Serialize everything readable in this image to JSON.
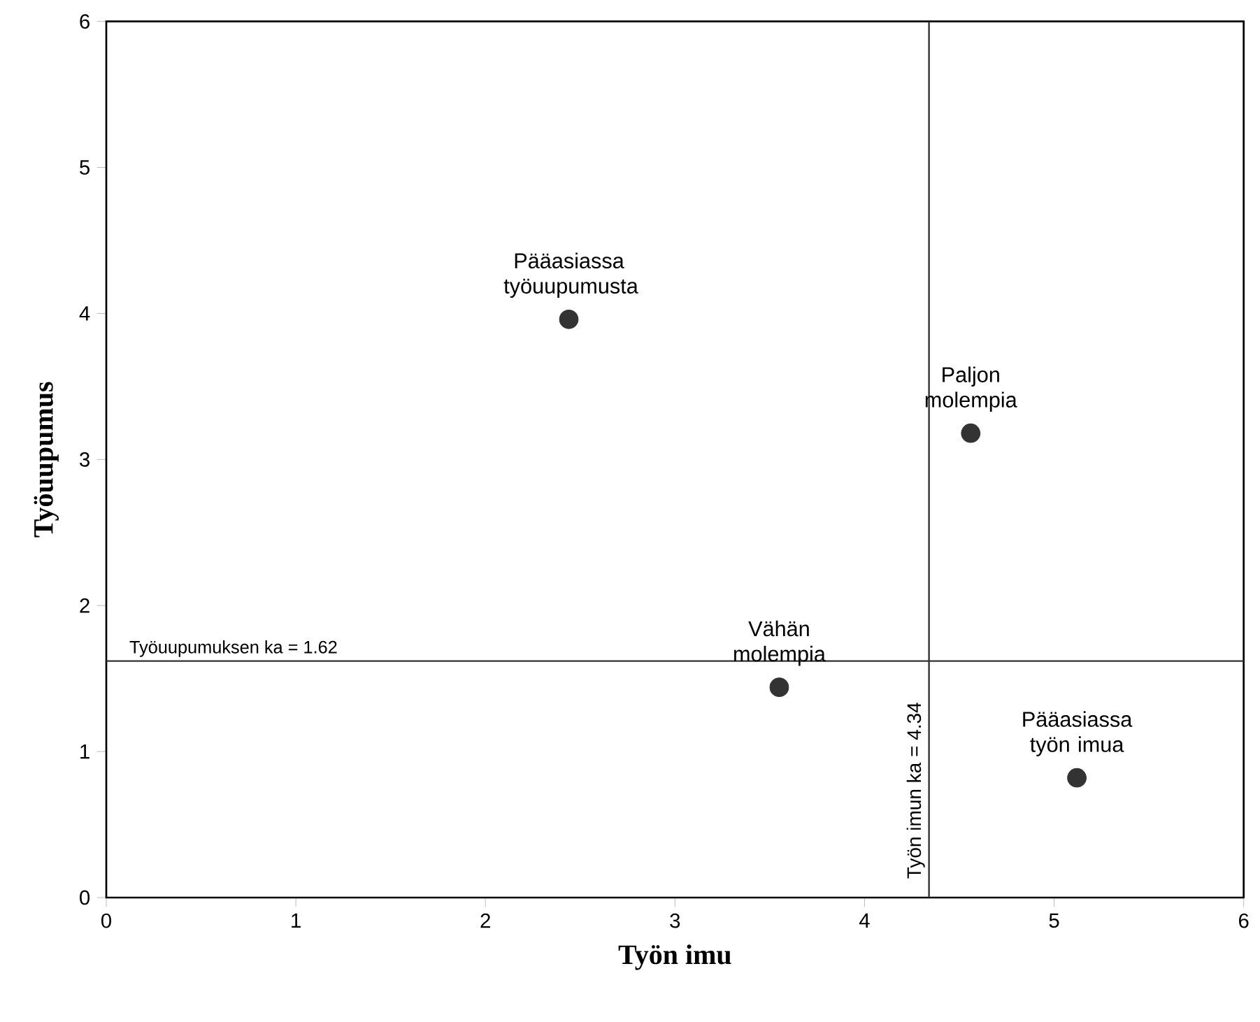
{
  "chart_data": {
    "type": "scatter",
    "xlabel": "Työn imu",
    "ylabel": "Työuupumus",
    "x": [
      2.44,
      4.56,
      3.55,
      5.12
    ],
    "values": [
      3.96,
      3.18,
      1.44,
      0.82
    ],
    "color": "#333333",
    "xlim": [
      0,
      6
    ],
    "ylim": [
      0,
      6
    ],
    "xticks": [
      0,
      1,
      2,
      3,
      4,
      5,
      6
    ],
    "yticks": [
      0,
      1,
      2,
      3,
      4,
      5,
      6
    ],
    "grid": false,
    "ref_lines": [
      {
        "axis": "y",
        "value": 1.62,
        "label": "Työuupumuksen ka = 1.62",
        "color": "#333333"
      },
      {
        "axis": "x",
        "value": 4.34,
        "label": "Työn imun ka = 4.34",
        "color": "#333333"
      }
    ],
    "annotations": [
      {
        "text": "Pääasiassa työuupumusta",
        "x": 2.44,
        "y": 3.96
      },
      {
        "text": "Paljon molempia",
        "x": 4.56,
        "y": 3.18
      },
      {
        "text": "Vähän molempia",
        "x": 3.55,
        "y": 1.44
      },
      {
        "text": "Pääasiassa työn imua",
        "x": 5.12,
        "y": 0.82
      }
    ]
  }
}
